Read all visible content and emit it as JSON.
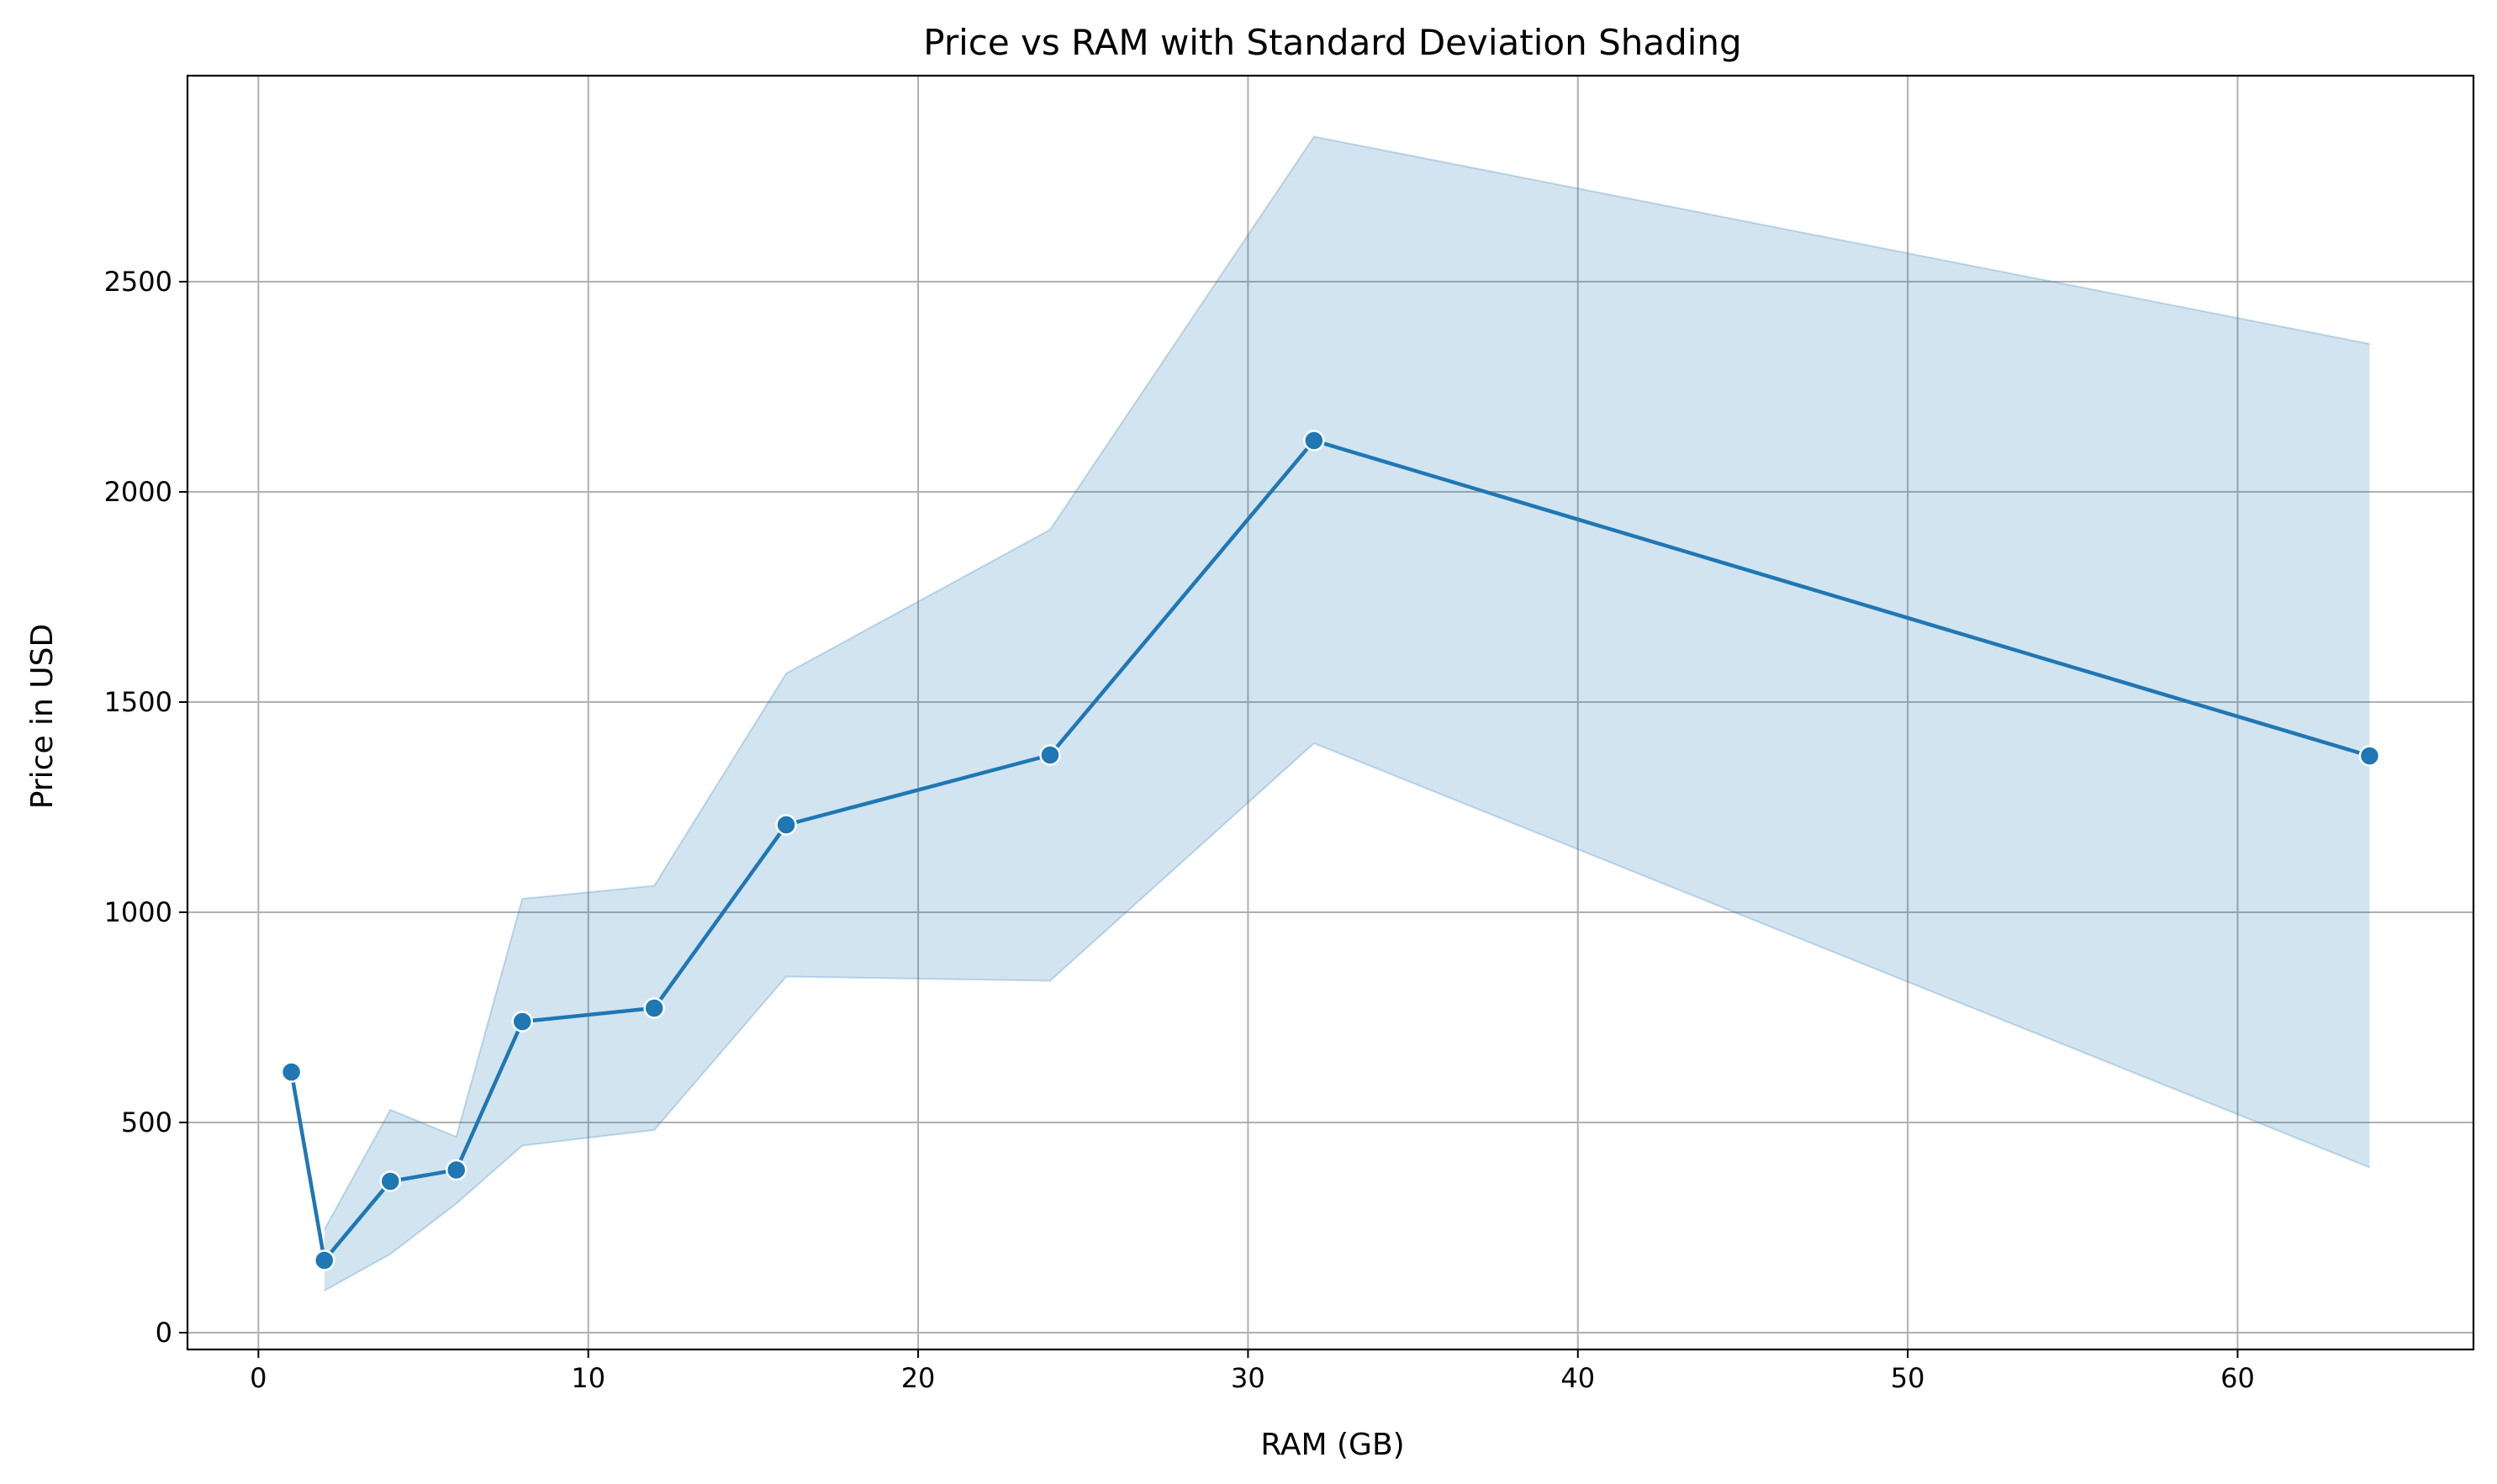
{
  "chart_data": {
    "type": "line",
    "title": "Price vs RAM with Standard Deviation Shading",
    "xlabel": "RAM (GB)",
    "ylabel": "Price in USD",
    "xlim": [
      -2.15,
      67.15
    ],
    "ylim": [
      -40,
      2990
    ],
    "xticks": [
      0,
      10,
      20,
      30,
      40,
      50,
      60
    ],
    "yticks": [
      0,
      500,
      1000,
      1500,
      2000,
      2500
    ],
    "grid": true,
    "legend": "none",
    "colors": {
      "line": "#1f77b4",
      "band": "#1f77b4",
      "grid": "#b0b0b0"
    },
    "series": [
      {
        "x": [
          1,
          2,
          4,
          6,
          8,
          12,
          16,
          24,
          32,
          64
        ],
        "y": [
          620,
          172,
          360,
          387,
          740,
          772,
          1208,
          1374,
          2122,
          1372
        ],
        "band_x": [
          2,
          4,
          6,
          8,
          12,
          16,
          24,
          32,
          64
        ],
        "band_lower": [
          100,
          187,
          307,
          445,
          482,
          847,
          837,
          1402,
          393
        ],
        "band_upper": [
          245,
          530,
          466,
          1032,
          1063,
          1568,
          1910,
          2845,
          2352
        ]
      }
    ]
  }
}
